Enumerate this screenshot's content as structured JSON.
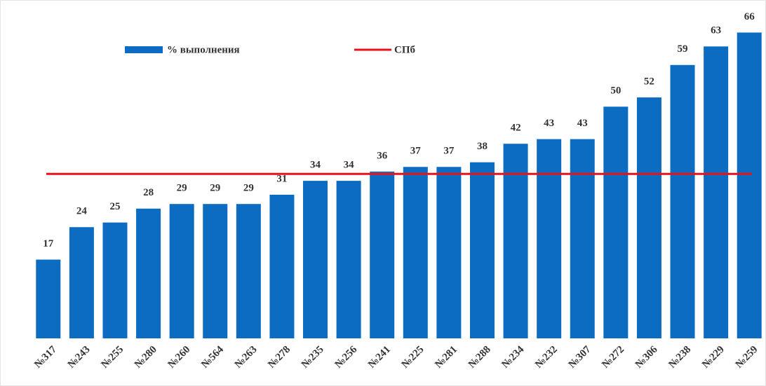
{
  "chart_data": {
    "type": "bar",
    "categories": [
      "№317",
      "№243",
      "№255",
      "№280",
      "№260",
      "№564",
      "№263",
      "№278",
      "№235",
      "№256",
      "№241",
      "№225",
      "№281",
      "№288",
      "№234",
      "№232",
      "№307",
      "№272",
      "№306",
      "№238",
      "№229",
      "№259"
    ],
    "series": [
      {
        "name": "% выполнения",
        "color": "#0b6cc2",
        "values": [
          17,
          24,
          25,
          28,
          29,
          29,
          29,
          31,
          34,
          34,
          36,
          37,
          37,
          38,
          42,
          43,
          43,
          50,
          52,
          59,
          63,
          66
        ]
      }
    ],
    "reference_lines": [
      {
        "name": "СПб",
        "color": "#e8121c",
        "value": 35.5
      }
    ],
    "ylim": [
      0,
      70
    ]
  }
}
